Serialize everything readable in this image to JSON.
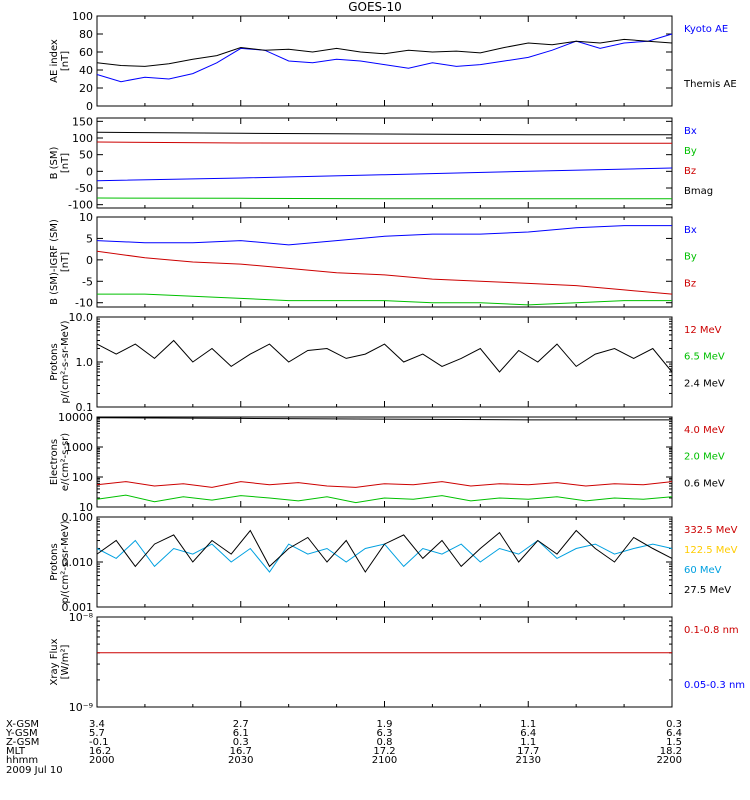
{
  "title": "GOES-10",
  "colors": {
    "black": "#000000",
    "blue": "#0000ff",
    "green": "#00c000",
    "red": "#cc0000",
    "orange": "#ffcc00",
    "cyan": "#00a0e0"
  },
  "chart_data": [
    {
      "type": "line",
      "id": "ae",
      "ylabel": [
        "AE index",
        "[nT]"
      ],
      "ylim": [
        0,
        100
      ],
      "yticks": [
        0,
        20,
        40,
        60,
        80,
        100
      ],
      "ytick_labels": [
        "0",
        "20",
        "40",
        "60",
        "80",
        "100"
      ],
      "legend_placement": "right",
      "series": [
        {
          "name": "Kyoto AE",
          "color": "#0000ff",
          "x": [
            0,
            5,
            10,
            15,
            20,
            25,
            30,
            35,
            40,
            45,
            50,
            55,
            60,
            65,
            70,
            75,
            80,
            85,
            90,
            95,
            100,
            105,
            110,
            115,
            120
          ],
          "y": [
            35,
            27,
            32,
            30,
            36,
            48,
            64,
            62,
            50,
            48,
            52,
            50,
            46,
            42,
            48,
            44,
            46,
            50,
            54,
            62,
            72,
            64,
            70,
            72,
            80
          ]
        },
        {
          "name": "Themis AE",
          "color": "#000000",
          "x": [
            0,
            5,
            10,
            15,
            20,
            25,
            30,
            35,
            40,
            45,
            50,
            55,
            60,
            65,
            70,
            75,
            80,
            85,
            90,
            95,
            100,
            105,
            110,
            115,
            120
          ],
          "y": [
            48,
            45,
            44,
            47,
            52,
            56,
            65,
            62,
            63,
            60,
            64,
            60,
            58,
            62,
            60,
            61,
            59,
            65,
            70,
            68,
            72,
            70,
            74,
            72,
            70
          ]
        }
      ]
    },
    {
      "type": "line",
      "id": "bsm",
      "ylabel": [
        "B (SM)",
        "[nT]"
      ],
      "ylim": [
        -110,
        160
      ],
      "yticks": [
        -100,
        -50,
        0,
        50,
        100,
        150
      ],
      "ytick_labels": [
        "-100",
        "-50",
        "0",
        "50",
        "100",
        "150"
      ],
      "legend_placement": "right",
      "series": [
        {
          "name": "Bx",
          "color": "#0000ff",
          "x": [
            0,
            30,
            60,
            90,
            120
          ],
          "y": [
            -28,
            -20,
            -10,
            0,
            10
          ]
        },
        {
          "name": "By",
          "color": "#00c000",
          "x": [
            0,
            30,
            60,
            90,
            120
          ],
          "y": [
            -80,
            -81,
            -82,
            -82,
            -82
          ]
        },
        {
          "name": "Bz",
          "color": "#cc0000",
          "x": [
            0,
            30,
            60,
            90,
            120
          ],
          "y": [
            88,
            85,
            84,
            84,
            84
          ]
        },
        {
          "name": "Bmag",
          "color": "#000000",
          "x": [
            0,
            30,
            60,
            90,
            120
          ],
          "y": [
            117,
            114,
            112,
            110,
            110
          ]
        }
      ]
    },
    {
      "type": "line",
      "id": "bsm-igrf",
      "ylabel": [
        "B (SM)-IGRF (SM)",
        "[nT]"
      ],
      "ylim": [
        -11,
        10
      ],
      "yticks": [
        -10,
        -5,
        0,
        5,
        10
      ],
      "ytick_labels": [
        "-10",
        "-5",
        "0",
        "5",
        "10"
      ],
      "legend_placement": "right",
      "series": [
        {
          "name": "Bx",
          "color": "#0000ff",
          "x": [
            0,
            10,
            20,
            30,
            40,
            50,
            60,
            70,
            80,
            90,
            100,
            110,
            120
          ],
          "y": [
            4.5,
            4,
            4,
            4.5,
            3.5,
            4.5,
            5.5,
            6,
            6,
            6.5,
            7.5,
            8,
            8
          ]
        },
        {
          "name": "By",
          "color": "#00c000",
          "x": [
            0,
            10,
            20,
            30,
            40,
            50,
            60,
            70,
            80,
            90,
            100,
            110,
            120
          ],
          "y": [
            -8,
            -8,
            -8.5,
            -9,
            -9.5,
            -9.5,
            -9.5,
            -10,
            -10,
            -10.5,
            -10,
            -9.5,
            -9.5
          ]
        },
        {
          "name": "Bz",
          "color": "#cc0000",
          "x": [
            0,
            10,
            20,
            30,
            40,
            50,
            60,
            70,
            80,
            90,
            100,
            110,
            120
          ],
          "y": [
            2,
            0.5,
            -0.5,
            -1,
            -2,
            -3,
            -3.5,
            -4.5,
            -5,
            -5.5,
            -6,
            -7,
            -8
          ]
        }
      ]
    },
    {
      "type": "line",
      "id": "protons-low",
      "ylabel": [
        "Protons",
        "p/(cm²-s-sr-MeV)"
      ],
      "yscale": "log",
      "ylim": [
        0.1,
        10
      ],
      "yticks": [
        0.1,
        1,
        10
      ],
      "ytick_labels": [
        "0.1",
        "1.0",
        "10.0"
      ],
      "legend_placement": "right",
      "series": [
        {
          "name": "12 MeV",
          "color": "#cc0000",
          "x": [],
          "y": []
        },
        {
          "name": "6.5 MeV",
          "color": "#00c000",
          "x": [],
          "y": []
        },
        {
          "name": "2.4 MeV",
          "color": "#000000",
          "x": [
            0,
            4,
            8,
            12,
            16,
            20,
            24,
            28,
            32,
            36,
            40,
            44,
            48,
            52,
            56,
            60,
            64,
            68,
            72,
            76,
            80,
            84,
            88,
            92,
            96,
            100,
            104,
            108,
            112,
            116,
            120
          ],
          "y": [
            2.5,
            1.5,
            2.5,
            1.2,
            3,
            1,
            2,
            0.8,
            1.5,
            2.5,
            1,
            1.8,
            2,
            1.2,
            1.5,
            2.5,
            1,
            1.5,
            0.8,
            1.2,
            2,
            0.6,
            1.8,
            1,
            2.5,
            0.8,
            1.5,
            2,
            1.2,
            2,
            0.6
          ]
        }
      ]
    },
    {
      "type": "line",
      "id": "electrons",
      "ylabel": [
        "Electrons",
        "e/(cm²-s-sr)"
      ],
      "yscale": "log",
      "ylim": [
        10,
        10000
      ],
      "yticks": [
        10,
        100,
        1000,
        10000
      ],
      "ytick_labels": [
        "10",
        "100",
        "1000",
        "10000"
      ],
      "legend_placement": "right",
      "series": [
        {
          "name": "4.0 MeV",
          "color": "#cc0000",
          "x": [
            0,
            6,
            12,
            18,
            24,
            30,
            36,
            42,
            48,
            54,
            60,
            66,
            72,
            78,
            84,
            90,
            96,
            102,
            108,
            114,
            120
          ],
          "y": [
            55,
            70,
            50,
            60,
            45,
            70,
            55,
            65,
            50,
            45,
            60,
            55,
            70,
            50,
            60,
            55,
            65,
            50,
            60,
            55,
            70
          ]
        },
        {
          "name": "2.0 MeV",
          "color": "#00c000",
          "x": [
            0,
            6,
            12,
            18,
            24,
            30,
            36,
            42,
            48,
            54,
            60,
            66,
            72,
            78,
            84,
            90,
            96,
            102,
            108,
            114,
            120
          ],
          "y": [
            18,
            25,
            15,
            22,
            17,
            24,
            20,
            16,
            22,
            14,
            20,
            18,
            24,
            16,
            20,
            18,
            22,
            16,
            20,
            18,
            22
          ]
        },
        {
          "name": "0.6 MeV",
          "color": "#000000",
          "x": [
            0,
            30,
            60,
            90,
            120
          ],
          "y": [
            9500,
            9000,
            8500,
            8000,
            8000
          ]
        }
      ]
    },
    {
      "type": "line",
      "id": "protons-high",
      "ylabel": [
        "Protons",
        "p/(cm²-s-sr-MeV)"
      ],
      "yscale": "log",
      "ylim": [
        0.001,
        0.1
      ],
      "yticks": [
        0.001,
        0.01,
        0.1
      ],
      "ytick_labels": [
        "0.001",
        "0.010",
        "0.100"
      ],
      "legend_placement": "right",
      "series": [
        {
          "name": "332.5 MeV",
          "color": "#cc0000",
          "x": [],
          "y": []
        },
        {
          "name": "122.5 MeV",
          "color": "#ffcc00",
          "x": [],
          "y": []
        },
        {
          "name": "60 MeV",
          "color": "#00a0e0",
          "x": [
            0,
            4,
            8,
            12,
            16,
            20,
            24,
            28,
            32,
            36,
            40,
            44,
            48,
            52,
            56,
            60,
            64,
            68,
            72,
            76,
            80,
            84,
            88,
            92,
            96,
            100,
            104,
            108,
            112,
            116,
            120
          ],
          "y": [
            0.02,
            0.012,
            0.03,
            0.008,
            0.02,
            0.015,
            0.025,
            0.01,
            0.02,
            0.006,
            0.025,
            0.015,
            0.02,
            0.01,
            0.02,
            0.025,
            0.008,
            0.02,
            0.015,
            0.025,
            0.01,
            0.02,
            0.015,
            0.03,
            0.012,
            0.02,
            0.025,
            0.015,
            0.02,
            0.025,
            0.02
          ]
        },
        {
          "name": "27.5 MeV",
          "color": "#000000",
          "x": [
            0,
            4,
            8,
            12,
            16,
            20,
            24,
            28,
            32,
            36,
            40,
            44,
            48,
            52,
            56,
            60,
            64,
            68,
            72,
            76,
            80,
            84,
            88,
            92,
            96,
            100,
            104,
            108,
            112,
            116,
            120
          ],
          "y": [
            0.015,
            0.03,
            0.008,
            0.025,
            0.04,
            0.01,
            0.03,
            0.015,
            0.05,
            0.008,
            0.02,
            0.035,
            0.01,
            0.03,
            0.006,
            0.025,
            0.04,
            0.012,
            0.03,
            0.008,
            0.02,
            0.045,
            0.01,
            0.03,
            0.015,
            0.05,
            0.02,
            0.01,
            0.035,
            0.02,
            0.012
          ]
        }
      ]
    },
    {
      "type": "line",
      "id": "xray",
      "ylabel": [
        "Xray Flux",
        "[W/m²]"
      ],
      "yscale": "log",
      "ylim": [
        1e-09,
        1e-08
      ],
      "yticks": [
        1e-09,
        1e-08
      ],
      "ytick_labels": [
        "10⁻⁹",
        "10⁻⁸"
      ],
      "legend_placement": "right",
      "series": [
        {
          "name": "0.1-0.8 nm",
          "color": "#cc0000",
          "x": [
            0,
            120
          ],
          "y": [
            4e-09,
            4e-09
          ]
        },
        {
          "name": "0.05-0.3 nm",
          "color": "#0000ff",
          "x": [],
          "y": []
        }
      ]
    }
  ],
  "xaxis": {
    "rows": [
      {
        "label": "X-GSM",
        "values": [
          "3.4",
          "2.7",
          "1.9",
          "1.1",
          "0.3"
        ]
      },
      {
        "label": "Y-GSM",
        "values": [
          "5.7",
          "6.1",
          "6.3",
          "6.4",
          "6.4"
        ]
      },
      {
        "label": "Z-GSM",
        "values": [
          "-0.1",
          "0.3",
          "0.8",
          "1.1",
          "1.5"
        ]
      },
      {
        "label": "MLT",
        "values": [
          "16.2",
          "16.7",
          "17.2",
          "17.7",
          "18.2"
        ]
      },
      {
        "label": "hhmm",
        "values": [
          "2000",
          "2030",
          "2100",
          "2130",
          "2200"
        ]
      }
    ],
    "date": "2009 Jul 10"
  }
}
